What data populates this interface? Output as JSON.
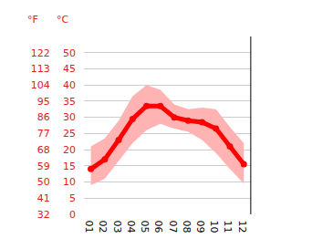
{
  "chart_data": {
    "type": "line",
    "categories": [
      "01",
      "02",
      "03",
      "04",
      "05",
      "06",
      "07",
      "08",
      "09",
      "10",
      "11",
      "12"
    ],
    "series": [
      {
        "color": "#ff0000",
        "values": [
          14,
          17,
          23,
          29.5,
          33.5,
          33.5,
          30,
          29,
          28.5,
          26.5,
          21,
          15.5
        ],
        "high": [
          21,
          23.5,
          29,
          36.5,
          40,
          38.5,
          34,
          32.5,
          33,
          32.5,
          27,
          22
        ],
        "low": [
          9,
          11,
          16.5,
          22,
          26,
          28,
          26.5,
          25.5,
          23,
          19,
          14,
          9.5
        ],
        "range_color": "#ffb3b3"
      }
    ],
    "ylabel": "°C",
    "ylim": [
      0,
      55
    ],
    "yticks": [
      0,
      5,
      10,
      15,
      20,
      25,
      30,
      35,
      40,
      45,
      50
    ],
    "y2label": "°F",
    "y2lim": [
      32,
      131
    ],
    "y2ticks": [
      32,
      41,
      50,
      59,
      68,
      77,
      86,
      95,
      104,
      113,
      122
    ],
    "grid": true
  }
}
